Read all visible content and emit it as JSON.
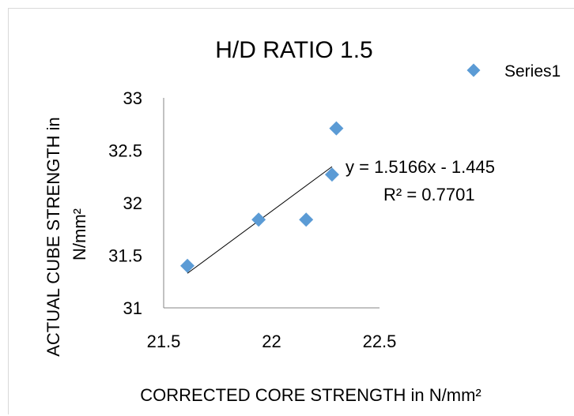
{
  "chart_data": {
    "type": "scatter",
    "title": "H/D RATIO 1.5",
    "xlabel": "CORRECTED CORE STRENGTH in N/mm²",
    "ylabel_line1": "ACTUAL CUBE STRENGTH in",
    "ylabel_line2": "N/mm²",
    "xlim": [
      21.5,
      22.5
    ],
    "ylim": [
      31,
      33
    ],
    "xticks": [
      "21.5",
      "22",
      "22.5"
    ],
    "yticks": [
      "31",
      "31.5",
      "32",
      "32.5",
      "33"
    ],
    "series": [
      {
        "name": "Series1",
        "color": "#5b9bd5",
        "marker": "diamond",
        "x": [
          21.61,
          21.94,
          22.16,
          22.28,
          22.3
        ],
        "y": [
          31.4,
          31.84,
          31.84,
          32.27,
          32.71
        ]
      }
    ],
    "trendline": {
      "type": "linear",
      "x_range": [
        21.61,
        22.28
      ],
      "equation": "y = 1.5166x - 1.445",
      "r_squared": "R² = 0.7701"
    },
    "legend_position": "top-right",
    "grid": false
  }
}
